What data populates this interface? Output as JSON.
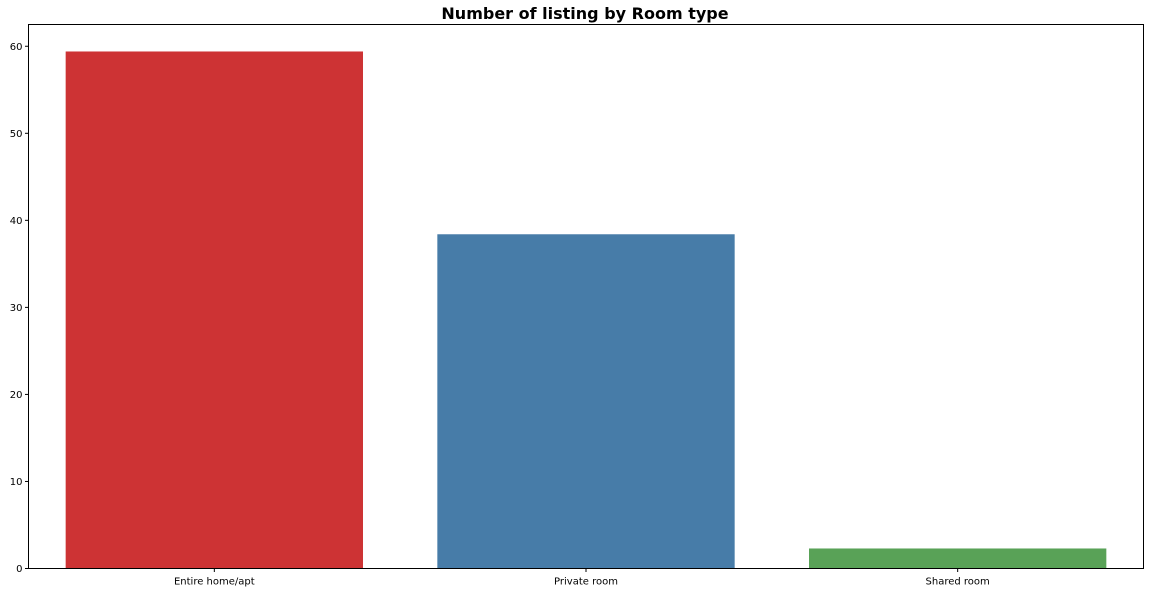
{
  "chart_data": {
    "type": "bar",
    "title": "Number of listing by Room type",
    "xlabel": "",
    "ylabel": "",
    "categories": [
      "Entire home/apt",
      "Private room",
      "Shared room"
    ],
    "values": [
      59.4,
      38.4,
      2.3
    ],
    "colors": [
      "#cd3334",
      "#477ca8",
      "#59a257"
    ],
    "ylim": [
      0,
      62.5
    ],
    "yticks": [
      0,
      10,
      20,
      30,
      40,
      50,
      60
    ],
    "grid": false,
    "legend": "none"
  }
}
